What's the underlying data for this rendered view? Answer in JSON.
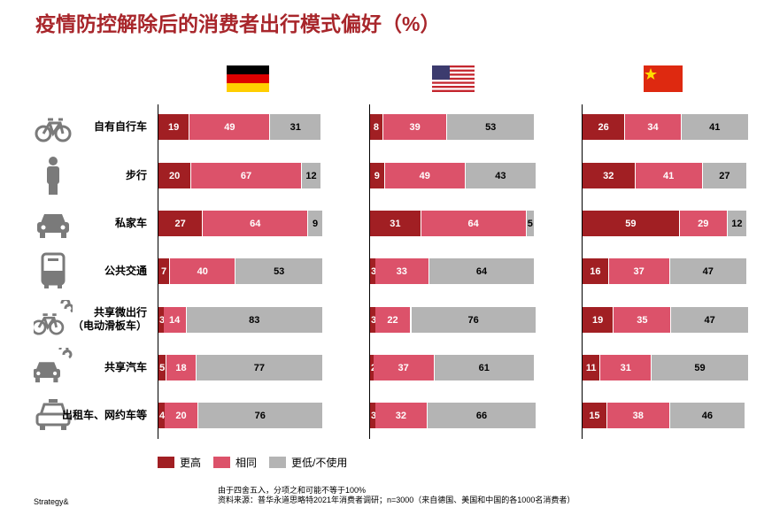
{
  "title": "疫情防控解除后的消费者出行模式偏好（%）",
  "colors": {
    "higher": "#a11f23",
    "same": "#dc526a",
    "lower": "#b4b4b4",
    "title": "#a8262b"
  },
  "chart_data": {
    "type": "bar",
    "stacked": true,
    "orientation": "horizontal",
    "title": "疫情防控解除后的消费者出行模式偏好（%）",
    "categories": [
      "自有自行车",
      "步行",
      "私家车",
      "公共交通",
      "共享微出行（电动滑板车）",
      "共享汽车",
      "出租车、网约车等"
    ],
    "category_lines": [
      [
        "自有自行车"
      ],
      [
        "步行"
      ],
      [
        "私家车"
      ],
      [
        "公共交通"
      ],
      [
        "共享微出行",
        "（电动滑板车）"
      ],
      [
        "共享汽车"
      ],
      [
        "出租车、网约车等"
      ]
    ],
    "icons": [
      "bicycle-icon",
      "pedestrian-icon",
      "car-icon",
      "bus-icon",
      "shared-bike-icon",
      "shared-car-icon",
      "taxi-icon"
    ],
    "legend": [
      "更高",
      "相同",
      "更低/不使用"
    ],
    "panels": [
      {
        "country": "德国",
        "flag": "germany-flag",
        "series": [
          [
            19,
            49,
            31
          ],
          [
            20,
            67,
            12
          ],
          [
            27,
            64,
            9
          ],
          [
            7,
            40,
            53
          ],
          [
            3,
            14,
            83
          ],
          [
            5,
            18,
            77
          ],
          [
            4,
            20,
            76
          ]
        ]
      },
      {
        "country": "美国",
        "flag": "usa-flag",
        "series": [
          [
            8,
            39,
            53
          ],
          [
            9,
            49,
            43
          ],
          [
            31,
            64,
            5
          ],
          [
            3,
            33,
            64
          ],
          [
            3,
            22,
            76
          ],
          [
            2,
            37,
            61
          ],
          [
            3,
            32,
            66
          ]
        ]
      },
      {
        "country": "中国",
        "flag": "china-flag",
        "series": [
          [
            26,
            34,
            41
          ],
          [
            32,
            41,
            27
          ],
          [
            59,
            29,
            12
          ],
          [
            16,
            37,
            47
          ],
          [
            19,
            35,
            47
          ],
          [
            11,
            31,
            59
          ],
          [
            15,
            38,
            46
          ]
        ]
      }
    ],
    "xlim": [
      0,
      100
    ]
  },
  "notes": [
    "由于四舍五入，分项之和可能不等于100%",
    "资料来源：普华永道思略特2021年消费者调研；n=3000（来自德国、美国和中国的各1000名消费者）"
  ],
  "brand": "Strategy&"
}
